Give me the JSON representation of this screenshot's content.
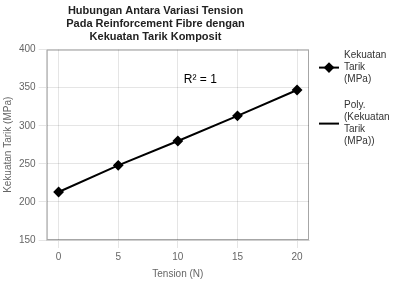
{
  "chart_data": {
    "type": "line",
    "title": "Hubungan Antara Variasi Tension\nPada Reinforcement Fibre dengan\nKekuatan Tarik Komposit",
    "xlabel": "Tension (N)",
    "ylabel": "Kekuatan Tarik (MPa)",
    "x": [
      0,
      5,
      10,
      15,
      20
    ],
    "series": [
      {
        "name": "Kekuatan\nTarik\n(MPa)",
        "color": "black",
        "marker": "diamond",
        "line_style": "solid",
        "values": [
          213,
          248,
          280,
          313,
          347
        ]
      },
      {
        "name": "Poly.\n(Kekuatan\nTarik\n(MPa))",
        "color": "black",
        "marker": "none",
        "line_style": "solid",
        "values": [
          null,
          null,
          null,
          null,
          null
        ]
      }
    ],
    "xlim": [
      -1,
      21
    ],
    "xticks": [
      0,
      5,
      10,
      15,
      20
    ],
    "ylim": [
      150,
      400
    ],
    "yticks": [
      150,
      200,
      250,
      300,
      350,
      400
    ],
    "grid": true,
    "legend": "right",
    "annotations": [
      {
        "text": "R² = 1",
        "x": 10.5,
        "y": 368
      }
    ]
  }
}
